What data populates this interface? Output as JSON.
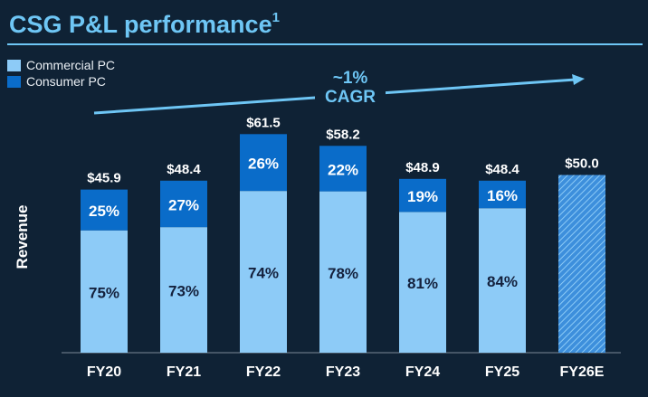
{
  "title": {
    "text": "CSG P&L performance",
    "footnote": "1"
  },
  "colors": {
    "commercial": "#8dcbf7",
    "consumer": "#0a6cc9",
    "estimate": "#5aa8eb",
    "text_light": "#ffffff",
    "text_dark": "#14213d",
    "accent": "#6ec6f5",
    "background": "#0f2235"
  },
  "chart_data": {
    "type": "bar",
    "stacked": true,
    "categories": [
      "FY20",
      "FY21",
      "FY22",
      "FY23",
      "FY24",
      "FY25",
      "FY26E"
    ],
    "totals": [
      45.9,
      48.4,
      61.5,
      58.2,
      48.9,
      48.4,
      50.0
    ],
    "total_labels": [
      "$45.9",
      "$48.4",
      "$61.5",
      "$58.2",
      "$48.9",
      "$48.4",
      "$50.0"
    ],
    "series": [
      {
        "name": "Commercial PC",
        "share_labels": [
          "75%",
          "73%",
          "74%",
          "78%",
          "81%",
          "84%",
          ""
        ],
        "shares": [
          0.75,
          0.73,
          0.74,
          0.78,
          0.81,
          0.84,
          null
        ]
      },
      {
        "name": "Consumer PC",
        "share_labels": [
          "25%",
          "27%",
          "26%",
          "22%",
          "19%",
          "16%",
          ""
        ],
        "shares": [
          0.25,
          0.27,
          0.26,
          0.22,
          0.19,
          0.16,
          null
        ]
      }
    ],
    "ylabel": "Revenue",
    "annotation": {
      "line1": "~1%",
      "line2": "CAGR"
    },
    "legend_position": "top-left"
  }
}
